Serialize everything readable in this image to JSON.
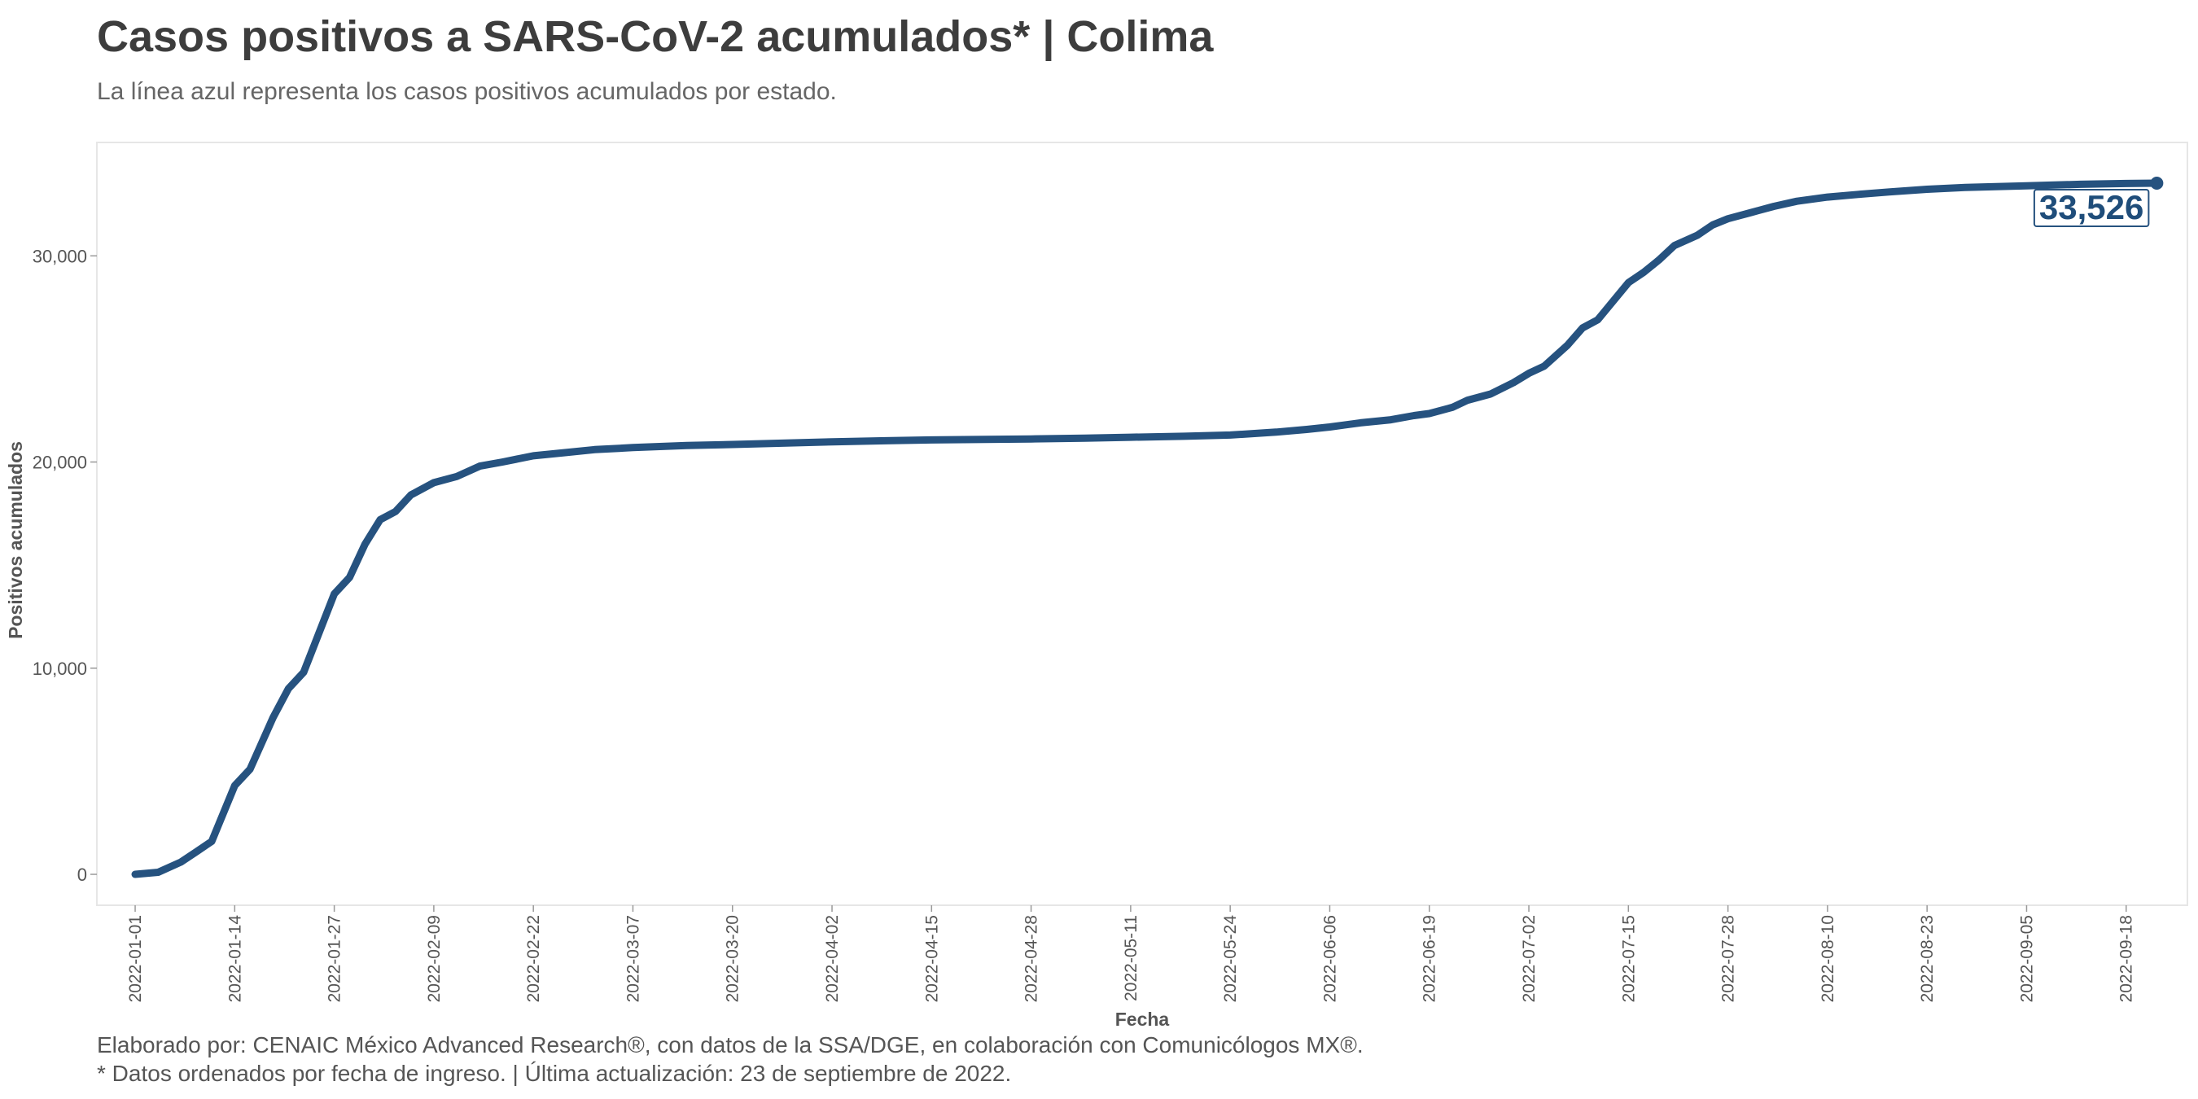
{
  "title": "Casos positivos a SARS-CoV-2 acumulados* | Colima",
  "subtitle": "La línea azul representa los casos positivos acumulados por estado.",
  "caption": [
    "Elaborado por: CENAIC México Advanced Research®, con datos de la SSA/DGE, en colaboración con Comunicólogos MX®.",
    "* Datos ordenados por fecha de ingreso. | Última actualización: 23 de septiembre de 2022."
  ],
  "colors": {
    "line": "#26527f",
    "label_text": "#1f4d7a"
  },
  "chart_data": {
    "type": "line",
    "xlabel": "Fecha",
    "ylabel": "Positivos acumulados",
    "ylim": [
      -1500,
      35500
    ],
    "xlim": [
      "2021-12-27",
      "2022-09-26"
    ],
    "grid": false,
    "y_ticks": [
      0,
      10000,
      20000,
      30000
    ],
    "y_tick_labels": [
      "0",
      "10,000",
      "20,000",
      "30,000"
    ],
    "x_ticks": [
      "2022-01-01",
      "2022-01-14",
      "2022-01-27",
      "2022-02-09",
      "2022-02-22",
      "2022-03-07",
      "2022-03-20",
      "2022-04-02",
      "2022-04-15",
      "2022-04-28",
      "2022-05-11",
      "2022-05-24",
      "2022-06-06",
      "2022-06-19",
      "2022-07-02",
      "2022-07-15",
      "2022-07-28",
      "2022-08-10",
      "2022-08-23",
      "2022-09-05",
      "2022-09-18"
    ],
    "last_value_label": "33,526",
    "series": [
      {
        "x": [
          "2022-01-01",
          "2022-01-04",
          "2022-01-07",
          "2022-01-09",
          "2022-01-11",
          "2022-01-14",
          "2022-01-16",
          "2022-01-19",
          "2022-01-21",
          "2022-01-23",
          "2022-01-25",
          "2022-01-27",
          "2022-01-29",
          "2022-01-31",
          "2022-02-02",
          "2022-02-04",
          "2022-02-06",
          "2022-02-09",
          "2022-02-12",
          "2022-02-15",
          "2022-02-18",
          "2022-02-22",
          "2022-02-26",
          "2022-03-02",
          "2022-03-07",
          "2022-03-14",
          "2022-03-20",
          "2022-03-27",
          "2022-04-02",
          "2022-04-09",
          "2022-04-15",
          "2022-04-22",
          "2022-04-28",
          "2022-05-05",
          "2022-05-11",
          "2022-05-18",
          "2022-05-24",
          "2022-05-30",
          "2022-06-03",
          "2022-06-06",
          "2022-06-10",
          "2022-06-14",
          "2022-06-17",
          "2022-06-19",
          "2022-06-22",
          "2022-06-24",
          "2022-06-27",
          "2022-06-30",
          "2022-07-02",
          "2022-07-04",
          "2022-07-07",
          "2022-07-09",
          "2022-07-11",
          "2022-07-13",
          "2022-07-15",
          "2022-07-17",
          "2022-07-19",
          "2022-07-21",
          "2022-07-24",
          "2022-07-26",
          "2022-07-28",
          "2022-07-31",
          "2022-08-03",
          "2022-08-06",
          "2022-08-10",
          "2022-08-14",
          "2022-08-18",
          "2022-08-23",
          "2022-08-28",
          "2022-09-05",
          "2022-09-12",
          "2022-09-18",
          "2022-09-22"
        ],
        "y": [
          0,
          100,
          600,
          1100,
          1600,
          4300,
          5100,
          7600,
          9000,
          9800,
          11700,
          13600,
          14400,
          16000,
          17200,
          17600,
          18400,
          19000,
          19300,
          19800,
          20000,
          20300,
          20450,
          20600,
          20700,
          20800,
          20850,
          20920,
          20980,
          21030,
          21070,
          21100,
          21120,
          21160,
          21200,
          21250,
          21310,
          21450,
          21580,
          21700,
          21900,
          22050,
          22250,
          22350,
          22650,
          23000,
          23300,
          23850,
          24300,
          24650,
          25650,
          26500,
          26900,
          27800,
          28700,
          29200,
          29800,
          30500,
          31000,
          31500,
          31800,
          32100,
          32400,
          32650,
          32850,
          32980,
          33100,
          33230,
          33320,
          33400,
          33470,
          33510,
          33526
        ]
      }
    ]
  }
}
